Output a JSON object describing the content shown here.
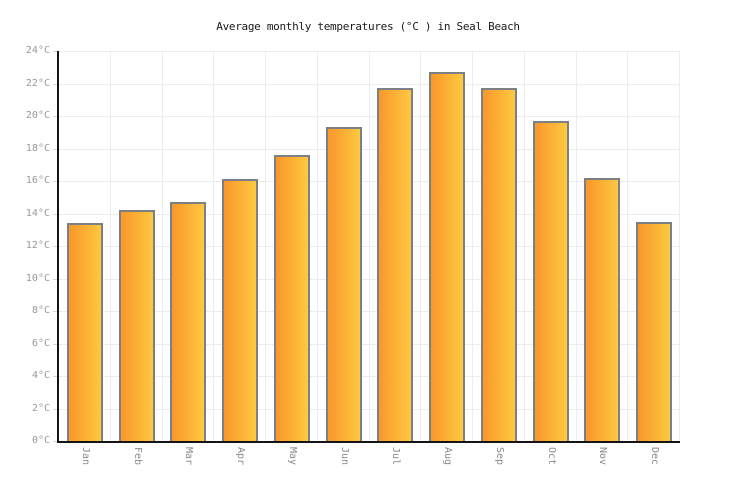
{
  "chart_data": {
    "type": "bar",
    "title": "Average monthly temperatures (°C ) in Seal Beach",
    "categories": [
      "Jan",
      "Feb",
      "Mar",
      "Apr",
      "May",
      "Jun",
      "Jul",
      "Aug",
      "Sep",
      "Oct",
      "Nov",
      "Dec"
    ],
    "values": [
      13.4,
      14.2,
      14.7,
      16.1,
      17.6,
      19.3,
      21.7,
      22.7,
      21.7,
      19.7,
      16.2,
      13.5
    ],
    "unit": "°C",
    "xlabel": "",
    "ylabel": "",
    "ylim": [
      0,
      24
    ],
    "ytick_step": 2,
    "ytick_labels": [
      "0°C",
      "2°C",
      "4°C",
      "6°C",
      "8°C",
      "10°C",
      "12°C",
      "14°C",
      "16°C",
      "18°C",
      "20°C",
      "22°C",
      "24°C"
    ],
    "grid": true,
    "legend": "none",
    "colors": {
      "background": "#ffffff",
      "bar_gradient_left": "#F9972B",
      "bar_gradient_right": "#FEC840",
      "bar_border": "#7B8087",
      "gridline": "#ECECEC",
      "axis": "#141414",
      "tick_mark": "#D8D8D8",
      "y_label": "#999999",
      "x_label": "#8A8A8A",
      "title": "#1A1A1A"
    }
  }
}
